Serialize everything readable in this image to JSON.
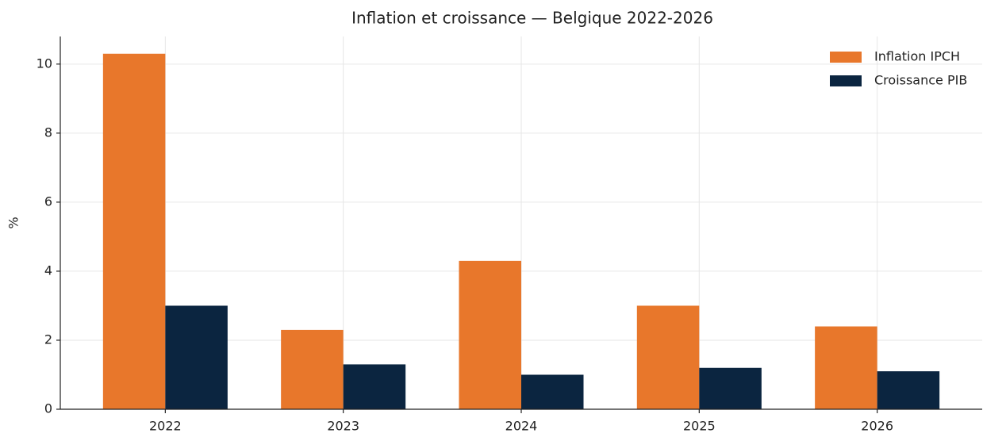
{
  "chart_data": {
    "type": "bar",
    "title": "Inflation et croissance — Belgique 2022-2026",
    "ylabel": "%",
    "categories": [
      "2022",
      "2023",
      "2024",
      "2025",
      "2026"
    ],
    "series": [
      {
        "name": "Inflation IPCH",
        "color": "#e8772b",
        "values": [
          10.3,
          2.3,
          4.3,
          3.0,
          2.4
        ]
      },
      {
        "name": "Croissance PIB",
        "color": "#0b2540",
        "values": [
          3.0,
          1.3,
          1.0,
          1.2,
          1.1
        ]
      }
    ],
    "ylim": [
      0,
      10.8
    ],
    "yticks": [
      0,
      2,
      4,
      6,
      8,
      10
    ],
    "grid": true,
    "legend": "upper right"
  }
}
